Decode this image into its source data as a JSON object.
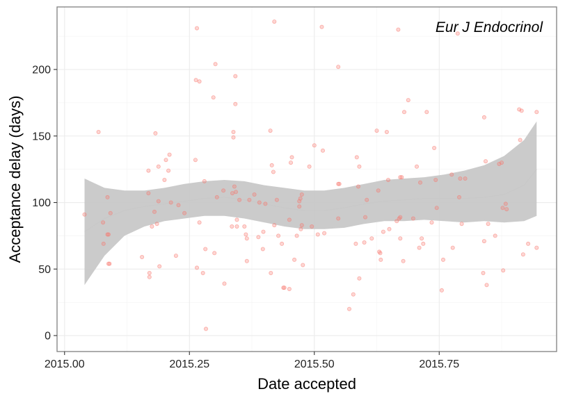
{
  "chart_data": {
    "type": "scatter",
    "title": "",
    "annotation": "Eur J Endocrinol",
    "xlabel": "Date accepted",
    "ylabel": "Acceptance delay (days)",
    "xlim": [
      2014.985,
      2015.985
    ],
    "ylim": [
      -12,
      247
    ],
    "xticks": [
      2015.0,
      2015.25,
      2015.5,
      2015.75
    ],
    "xtick_labels": [
      "2015.00",
      "2015.25",
      "2015.50",
      "2015.75"
    ],
    "yticks": [
      0,
      50,
      100,
      150,
      200
    ],
    "ytick_labels": [
      "0",
      "50",
      "100",
      "150",
      "200"
    ],
    "grid": true,
    "point_color": "#f8766d",
    "band_color": "#c8c8c8",
    "points": [
      [
        2015.04,
        91
      ],
      [
        2015.068,
        153
      ],
      [
        2015.077,
        85
      ],
      [
        2015.078,
        69
      ],
      [
        2015.086,
        104
      ],
      [
        2015.086,
        76
      ],
      [
        2015.088,
        76
      ],
      [
        2015.088,
        54
      ],
      [
        2015.09,
        54
      ],
      [
        2015.092,
        92
      ],
      [
        2015.155,
        59
      ],
      [
        2015.168,
        107
      ],
      [
        2015.168,
        124
      ],
      [
        2015.17,
        47
      ],
      [
        2015.17,
        44
      ],
      [
        2015.175,
        82
      ],
      [
        2015.18,
        93
      ],
      [
        2015.182,
        152
      ],
      [
        2015.185,
        84
      ],
      [
        2015.188,
        127
      ],
      [
        2015.188,
        101
      ],
      [
        2015.19,
        52
      ],
      [
        2015.2,
        117
      ],
      [
        2015.203,
        132
      ],
      [
        2015.208,
        124
      ],
      [
        2015.21,
        136
      ],
      [
        2015.213,
        100
      ],
      [
        2015.223,
        60
      ],
      [
        2015.228,
        98
      ],
      [
        2015.24,
        92
      ],
      [
        2015.262,
        132
      ],
      [
        2015.263,
        192
      ],
      [
        2015.265,
        231
      ],
      [
        2015.265,
        51
      ],
      [
        2015.27,
        191
      ],
      [
        2015.27,
        85
      ],
      [
        2015.277,
        47
      ],
      [
        2015.28,
        116
      ],
      [
        2015.282,
        65
      ],
      [
        2015.283,
        5
      ],
      [
        2015.298,
        179
      ],
      [
        2015.3,
        62
      ],
      [
        2015.302,
        204
      ],
      [
        2015.305,
        104
      ],
      [
        2015.318,
        109
      ],
      [
        2015.32,
        39
      ],
      [
        2015.335,
        82
      ],
      [
        2015.336,
        107
      ],
      [
        2015.338,
        153
      ],
      [
        2015.338,
        149
      ],
      [
        2015.34,
        112
      ],
      [
        2015.342,
        195
      ],
      [
        2015.342,
        174
      ],
      [
        2015.343,
        108
      ],
      [
        2015.345,
        82
      ],
      [
        2015.345,
        87
      ],
      [
        2015.35,
        102
      ],
      [
        2015.36,
        82
      ],
      [
        2015.363,
        76
      ],
      [
        2015.365,
        73
      ],
      [
        2015.365,
        56
      ],
      [
        2015.37,
        102
      ],
      [
        2015.38,
        106
      ],
      [
        2015.388,
        74
      ],
      [
        2015.39,
        100
      ],
      [
        2015.397,
        65
      ],
      [
        2015.398,
        78
      ],
      [
        2015.402,
        99
      ],
      [
        2015.412,
        154
      ],
      [
        2015.413,
        47
      ],
      [
        2015.415,
        128
      ],
      [
        2015.418,
        123
      ],
      [
        2015.42,
        83
      ],
      [
        2015.42,
        236
      ],
      [
        2015.425,
        102
      ],
      [
        2015.428,
        75
      ],
      [
        2015.435,
        69
      ],
      [
        2015.438,
        36
      ],
      [
        2015.44,
        36
      ],
      [
        2015.45,
        87
      ],
      [
        2015.45,
        35
      ],
      [
        2015.453,
        130
      ],
      [
        2015.455,
        134
      ],
      [
        2015.46,
        57
      ],
      [
        2015.465,
        75
      ],
      [
        2015.47,
        97
      ],
      [
        2015.47,
        101
      ],
      [
        2015.472,
        103
      ],
      [
        2015.473,
        80
      ],
      [
        2015.475,
        106
      ],
      [
        2015.475,
        83
      ],
      [
        2015.477,
        53
      ],
      [
        2015.49,
        127
      ],
      [
        2015.495,
        82
      ],
      [
        2015.5,
        143
      ],
      [
        2015.507,
        76
      ],
      [
        2015.515,
        232
      ],
      [
        2015.517,
        139
      ],
      [
        2015.52,
        77
      ],
      [
        2015.548,
        202
      ],
      [
        2015.548,
        114
      ],
      [
        2015.548,
        88
      ],
      [
        2015.55,
        114
      ],
      [
        2015.57,
        20
      ],
      [
        2015.578,
        31
      ],
      [
        2015.583,
        69
      ],
      [
        2015.585,
        134
      ],
      [
        2015.588,
        112
      ],
      [
        2015.59,
        43
      ],
      [
        2015.59,
        127
      ],
      [
        2015.6,
        70
      ],
      [
        2015.602,
        89
      ],
      [
        2015.605,
        102
      ],
      [
        2015.615,
        73
      ],
      [
        2015.625,
        154
      ],
      [
        2015.628,
        109
      ],
      [
        2015.63,
        63
      ],
      [
        2015.632,
        62
      ],
      [
        2015.633,
        57
      ],
      [
        2015.638,
        78
      ],
      [
        2015.645,
        153
      ],
      [
        2015.648,
        117
      ],
      [
        2015.65,
        80
      ],
      [
        2015.665,
        86
      ],
      [
        2015.668,
        230
      ],
      [
        2015.67,
        88
      ],
      [
        2015.672,
        119
      ],
      [
        2015.672,
        89
      ],
      [
        2015.672,
        73
      ],
      [
        2015.675,
        119
      ],
      [
        2015.678,
        56
      ],
      [
        2015.68,
        168
      ],
      [
        2015.688,
        177
      ],
      [
        2015.698,
        88
      ],
      [
        2015.705,
        127
      ],
      [
        2015.71,
        66
      ],
      [
        2015.712,
        115
      ],
      [
        2015.715,
        73
      ],
      [
        2015.718,
        69
      ],
      [
        2015.725,
        168
      ],
      [
        2015.735,
        85
      ],
      [
        2015.74,
        141
      ],
      [
        2015.743,
        117
      ],
      [
        2015.745,
        96
      ],
      [
        2015.755,
        34
      ],
      [
        2015.758,
        57
      ],
      [
        2015.775,
        121
      ],
      [
        2015.777,
        66
      ],
      [
        2015.787,
        227
      ],
      [
        2015.79,
        104
      ],
      [
        2015.792,
        118
      ],
      [
        2015.795,
        84
      ],
      [
        2015.802,
        118
      ],
      [
        2015.838,
        47
      ],
      [
        2015.84,
        164
      ],
      [
        2015.84,
        71
      ],
      [
        2015.843,
        131
      ],
      [
        2015.845,
        38
      ],
      [
        2015.848,
        84
      ],
      [
        2015.862,
        75
      ],
      [
        2015.87,
        129
      ],
      [
        2015.875,
        130
      ],
      [
        2015.877,
        96
      ],
      [
        2015.883,
        99
      ],
      [
        2015.885,
        95
      ],
      [
        2015.878,
        49
      ],
      [
        2015.91,
        170
      ],
      [
        2015.912,
        147
      ],
      [
        2015.915,
        169
      ],
      [
        2015.918,
        61
      ],
      [
        2015.928,
        69
      ],
      [
        2015.945,
        168
      ],
      [
        2015.945,
        66
      ]
    ],
    "smooth": {
      "x": [
        2015.04,
        2015.08,
        2015.12,
        2015.16,
        2015.2,
        2015.24,
        2015.28,
        2015.32,
        2015.36,
        2015.4,
        2015.44,
        2015.48,
        2015.52,
        2015.56,
        2015.6,
        2015.64,
        2015.68,
        2015.72,
        2015.76,
        2015.8,
        2015.84,
        2015.88,
        2015.92,
        2015.945
      ],
      "y": [
        78,
        88,
        94,
        97,
        99,
        101,
        103,
        104,
        102,
        99,
        96,
        94,
        94,
        96,
        99,
        101,
        102,
        103,
        103,
        103,
        104,
        106,
        113,
        125
      ],
      "upper": [
        118,
        111,
        109,
        109,
        111,
        114,
        116,
        117,
        116,
        113,
        111,
        109,
        109,
        111,
        114,
        117,
        118,
        119,
        121,
        124,
        128,
        135,
        147,
        161
      ],
      "lower": [
        38,
        60,
        75,
        82,
        86,
        88,
        90,
        90,
        88,
        85,
        82,
        80,
        80,
        81,
        84,
        86,
        86,
        87,
        86,
        85,
        86,
        85,
        86,
        90
      ]
    }
  }
}
